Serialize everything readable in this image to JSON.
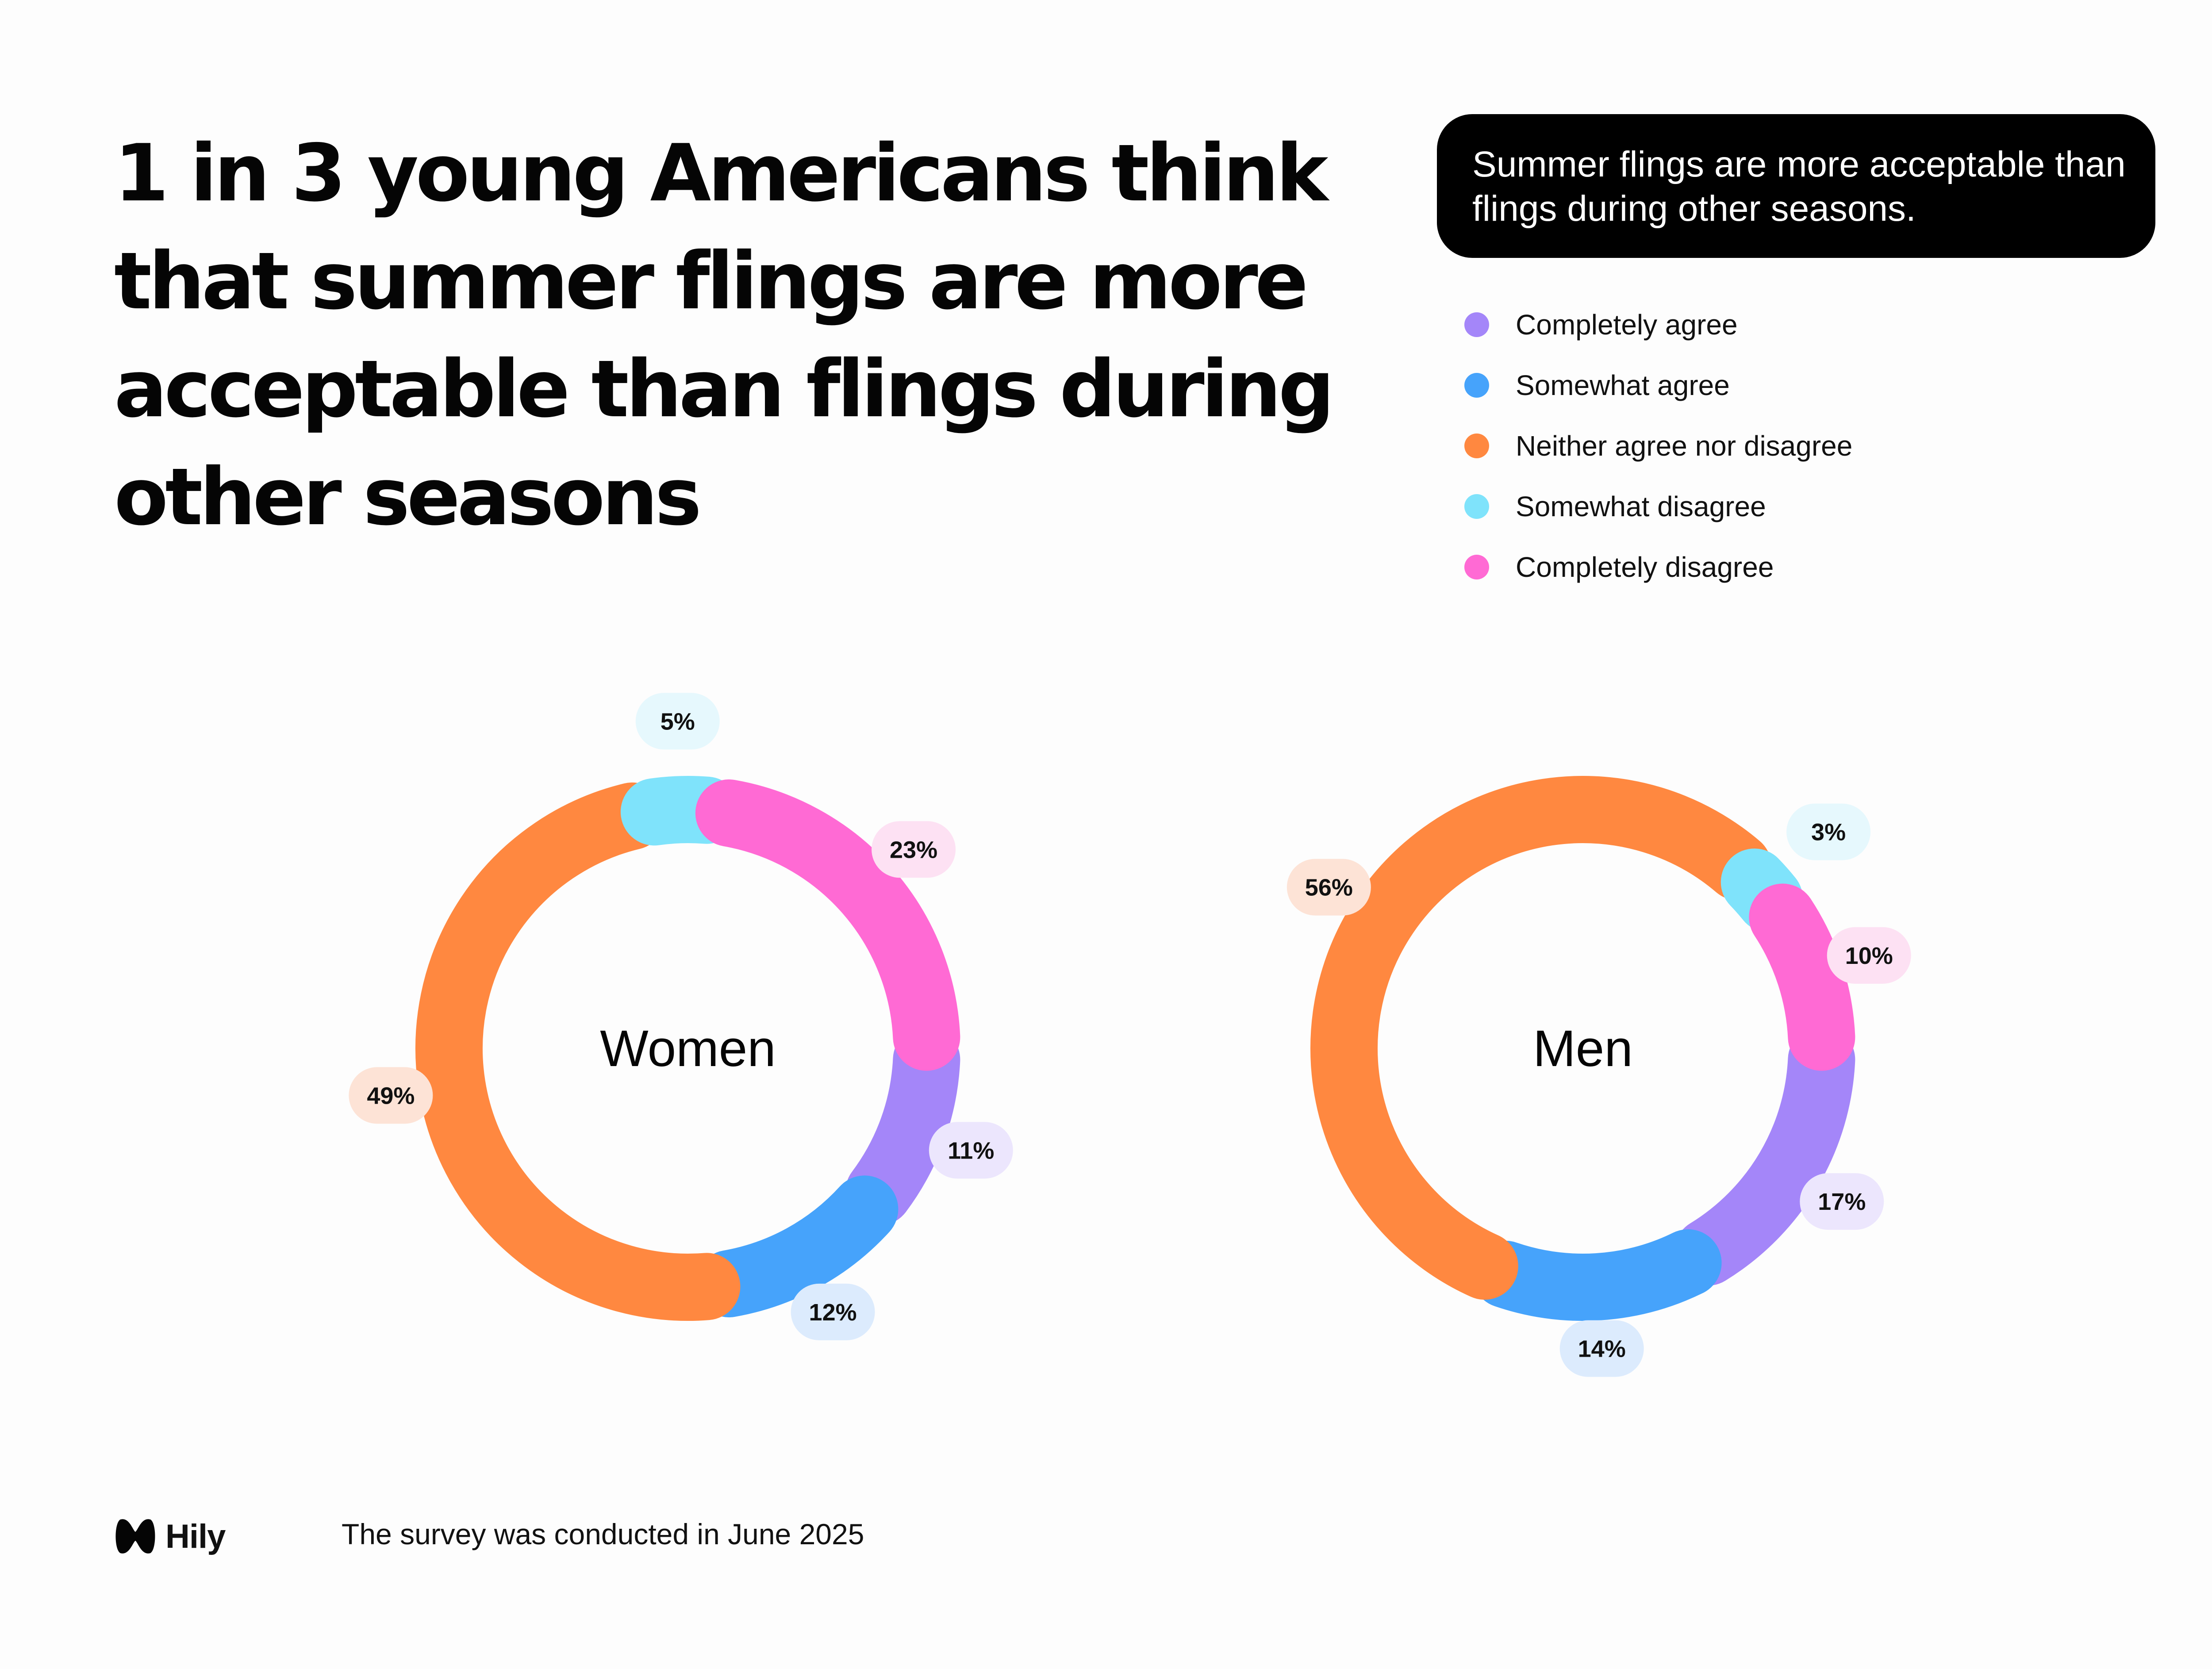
{
  "headline": "1 in 3 young Americans think that summer flings are more acceptable than flings during other seasons",
  "question": "Summer flings are more acceptable than flings during other seasons.",
  "brand": {
    "name": "Hily",
    "logo_icon": "hily-logo-icon"
  },
  "footnote": "The survey was conducted in June 2025",
  "colors": {
    "Completely agree": "#a486f9",
    "Somewhat agree": "#46a3fb",
    "Neither agree nor disagree": "#ff8840",
    "Somewhat disagree": "#7fe3fb",
    "Completely disagree": "#ff6ad4"
  },
  "label_backgrounds": {
    "Completely agree": "#ece6fd",
    "Somewhat agree": "#dcebfd",
    "Neither agree nor disagree": "#fde3d6",
    "Somewhat disagree": "#e6f8fd",
    "Completely disagree": "#fde1f3"
  },
  "chart_data": {
    "type": "pie",
    "style": "donut",
    "legend": "top-right",
    "categories": [
      "Completely agree",
      "Somewhat agree",
      "Neither agree nor disagree",
      "Somewhat disagree",
      "Completely disagree"
    ],
    "series": [
      {
        "name": "Women",
        "values": [
          11,
          12,
          49,
          5,
          23
        ]
      },
      {
        "name": "Men",
        "values": [
          17,
          14,
          56,
          3,
          10
        ]
      }
    ],
    "unit": "%"
  }
}
